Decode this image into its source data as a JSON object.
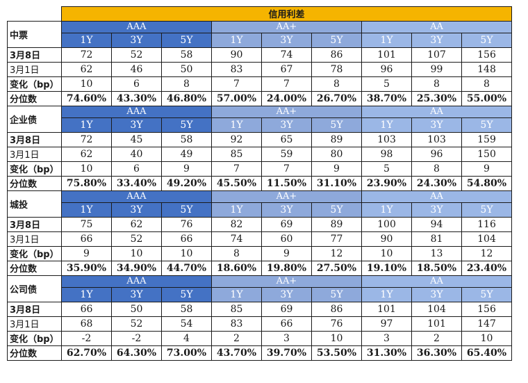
{
  "title": "信用利差",
  "ratings": [
    "AAA",
    "AA+",
    "AA"
  ],
  "tenors": [
    "1Y",
    "3Y",
    "5Y"
  ],
  "row_labels": {
    "current": "3月8日",
    "previous": "3月1日",
    "change": "变化（bp）",
    "percentile": "分位数"
  },
  "colors": {
    "title_bg": "#f5b400",
    "aaa_header_bg": "#4472c4",
    "aa_plus_header_bg": "#8ea9db",
    "aa_header_bg": "#9bb7e6"
  },
  "sections": [
    {
      "category": "中票",
      "current": [
        "72",
        "52",
        "58",
        "90",
        "74",
        "86",
        "101",
        "107",
        "156"
      ],
      "previous": [
        "62",
        "46",
        "50",
        "83",
        "67",
        "78",
        "96",
        "99",
        "148"
      ],
      "change": [
        "10",
        "6",
        "8",
        "7",
        "7",
        "8",
        "5",
        "8",
        "8"
      ],
      "percentile": [
        "74.60%",
        "43.30%",
        "46.80%",
        "57.00%",
        "24.00%",
        "26.70%",
        "38.70%",
        "25.30%",
        "55.00%"
      ]
    },
    {
      "category": "企业债",
      "current": [
        "72",
        "45",
        "58",
        "92",
        "65",
        "89",
        "103",
        "103",
        "159"
      ],
      "previous": [
        "62",
        "40",
        "49",
        "85",
        "59",
        "80",
        "98",
        "96",
        "150"
      ],
      "change": [
        "10",
        "6",
        "9",
        "7",
        "7",
        "9",
        "5",
        "8",
        "9"
      ],
      "percentile": [
        "75.80%",
        "33.40%",
        "49.20%",
        "45.50%",
        "11.50%",
        "31.10%",
        "23.90%",
        "24.30%",
        "54.80%"
      ]
    },
    {
      "category": "城投",
      "current": [
        "75",
        "62",
        "76",
        "82",
        "69",
        "89",
        "100",
        "94",
        "116"
      ],
      "previous": [
        "66",
        "52",
        "66",
        "74",
        "60",
        "77",
        "90",
        "81",
        "104"
      ],
      "change": [
        "9",
        "10",
        "10",
        "8",
        "9",
        "12",
        "10",
        "13",
        "12"
      ],
      "percentile": [
        "35.90%",
        "34.90%",
        "44.70%",
        "18.60%",
        "19.80%",
        "27.50%",
        "19.10%",
        "18.50%",
        "23.40%"
      ]
    },
    {
      "category": "公司债",
      "current": [
        "66",
        "50",
        "58",
        "85",
        "69",
        "86",
        "101",
        "104",
        "156"
      ],
      "previous": [
        "68",
        "52",
        "54",
        "83",
        "66",
        "76",
        "97",
        "101",
        "147"
      ],
      "change": [
        "-2",
        "-2",
        "4",
        "2",
        "3",
        "10",
        "3",
        "2",
        "10"
      ],
      "percentile": [
        "62.70%",
        "64.30%",
        "73.00%",
        "43.70%",
        "39.70%",
        "53.50%",
        "31.30%",
        "36.30%",
        "65.40%"
      ]
    }
  ]
}
